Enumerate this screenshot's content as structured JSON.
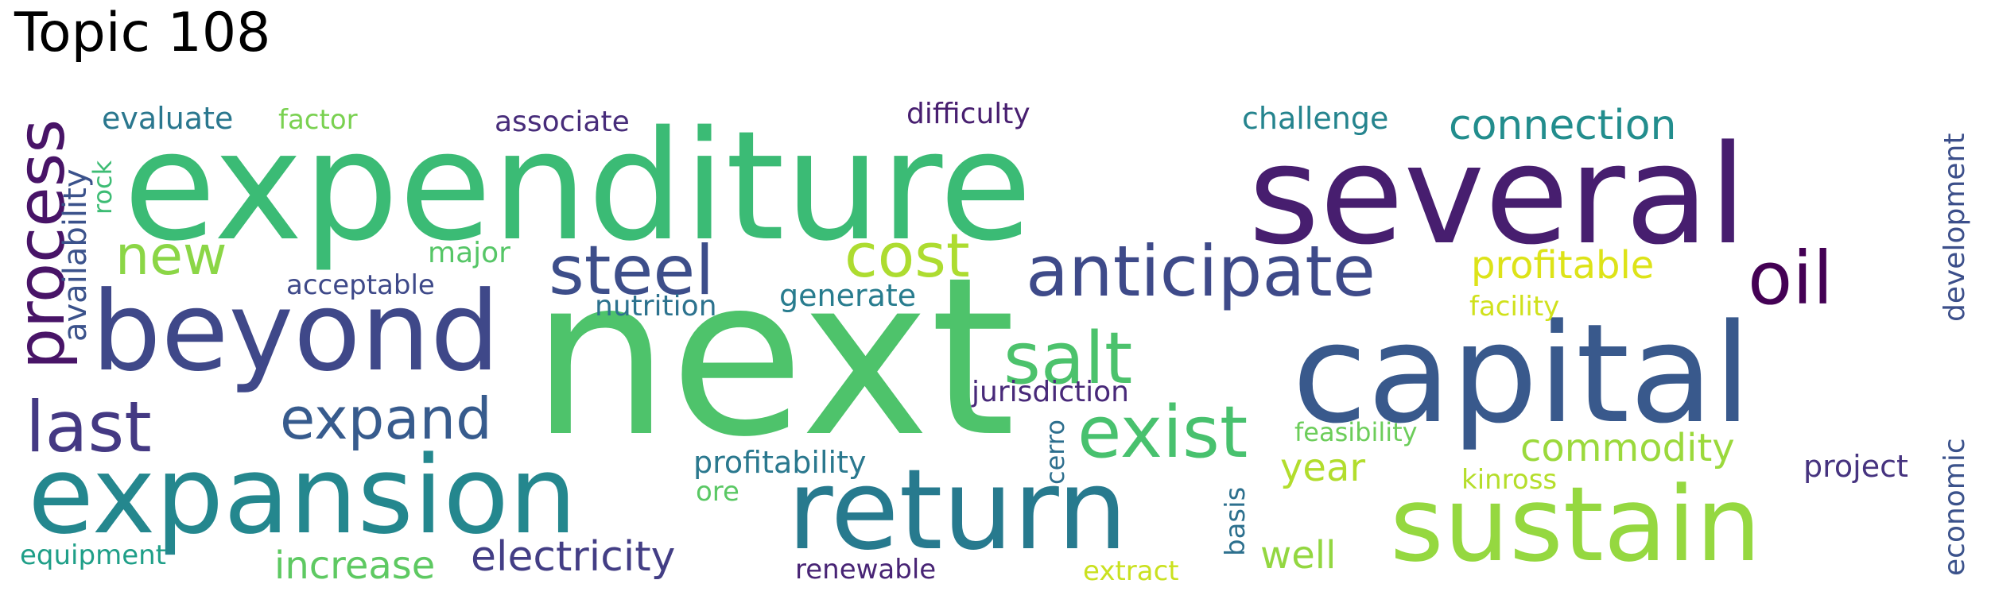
{
  "title": "Topic 108",
  "words": [
    {
      "text": "next",
      "color": "#4ec36b"
    },
    {
      "text": "expenditure",
      "color": "#3bbb75"
    },
    {
      "text": "several",
      "color": "#471e6f"
    },
    {
      "text": "capital",
      "color": "#39598c"
    },
    {
      "text": "beyond",
      "color": "#3f4889"
    },
    {
      "text": "expansion",
      "color": "#24878e"
    },
    {
      "text": "return",
      "color": "#277a8e"
    },
    {
      "text": "sustain",
      "color": "#95d840"
    },
    {
      "text": "process",
      "color": "#481467"
    },
    {
      "text": "anticipate",
      "color": "#3e4a89"
    },
    {
      "text": "steel",
      "color": "#3d4e8a"
    },
    {
      "text": "salt",
      "color": "#4cc26c"
    },
    {
      "text": "exist",
      "color": "#48c16e"
    },
    {
      "text": "expand",
      "color": "#375b8d"
    },
    {
      "text": "last",
      "color": "#443983"
    },
    {
      "text": "cost",
      "color": "#addc30"
    },
    {
      "text": "oil",
      "color": "#440154"
    },
    {
      "text": "new",
      "color": "#8bd646"
    },
    {
      "text": "connection",
      "color": "#228d8d"
    },
    {
      "text": "profitable",
      "color": "#dde318"
    },
    {
      "text": "electricity",
      "color": "#433e85"
    },
    {
      "text": "increase",
      "color": "#5ec962"
    },
    {
      "text": "commodity",
      "color": "#9bd93c"
    },
    {
      "text": "well",
      "color": "#93d741"
    },
    {
      "text": "year",
      "color": "#b2dd2d"
    },
    {
      "text": "profitability",
      "color": "#2a788e"
    },
    {
      "text": "evaluate",
      "color": "#2a778e"
    },
    {
      "text": "challenge",
      "color": "#25848e"
    },
    {
      "text": "difficulty",
      "color": "#481f70"
    },
    {
      "text": "associate",
      "color": "#472c7a"
    },
    {
      "text": "factor",
      "color": "#7ad151"
    },
    {
      "text": "major",
      "color": "#56c667"
    },
    {
      "text": "generate",
      "color": "#287c8e"
    },
    {
      "text": "acceptable",
      "color": "#3e4989"
    },
    {
      "text": "nutrition",
      "color": "#2c728e"
    },
    {
      "text": "jurisdiction",
      "color": "#482979"
    },
    {
      "text": "facility",
      "color": "#d0e11c"
    },
    {
      "text": "feasibility",
      "color": "#6ccd5a"
    },
    {
      "text": "kinross",
      "color": "#b5de2b"
    },
    {
      "text": "project",
      "color": "#46337f"
    },
    {
      "text": "ore",
      "color": "#5ac864"
    },
    {
      "text": "equipment",
      "color": "#1f9f88"
    },
    {
      "text": "renewable",
      "color": "#482475"
    },
    {
      "text": "extract",
      "color": "#cae11f"
    },
    {
      "text": "availability",
      "color": "#3b528b"
    },
    {
      "text": "rock",
      "color": "#3dbc74"
    },
    {
      "text": "cerro",
      "color": "#2e6f8e"
    },
    {
      "text": "basis",
      "color": "#2d708e"
    },
    {
      "text": "development",
      "color": "#3c4f8a"
    },
    {
      "text": "economic",
      "color": "#3b528b"
    }
  ]
}
